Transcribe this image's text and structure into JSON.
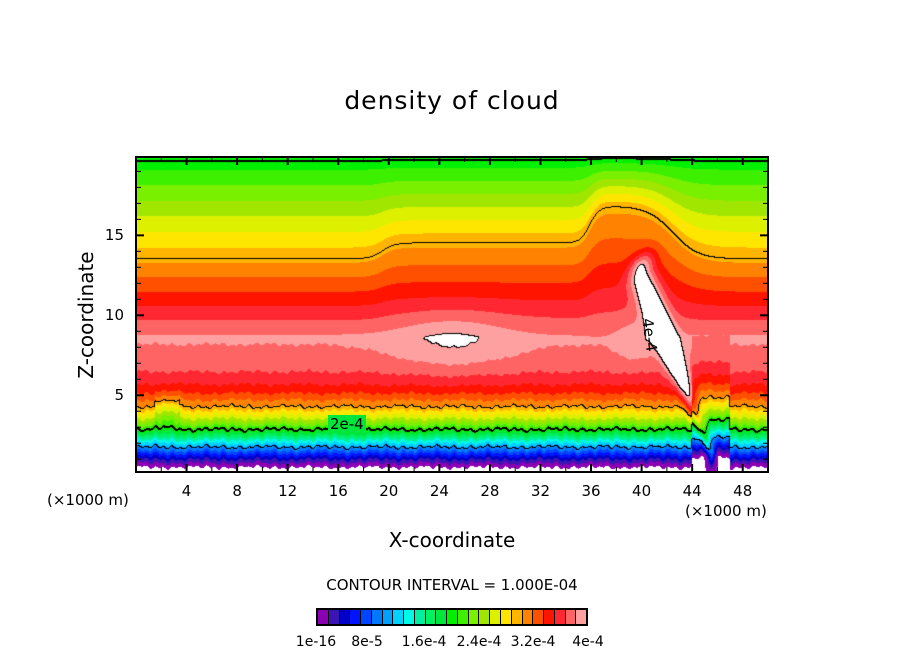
{
  "chart_data": {
    "type": "heatmap",
    "subtype": "filled-contour",
    "title": "density of cloud",
    "xlabel": "X-coordinate",
    "ylabel": "Z-coordinate",
    "x_unit": "(×1000 m)",
    "xlim": [
      0,
      50
    ],
    "ylim": [
      0.2,
      19.9
    ],
    "x_ticks": [
      4,
      8,
      12,
      16,
      20,
      24,
      28,
      32,
      36,
      40,
      44,
      48
    ],
    "x_tick_labels": [
      "4",
      "8",
      "12",
      "16",
      "20",
      "24",
      "28",
      "32",
      "36",
      "40",
      "44",
      "48"
    ],
    "y_ticks": [
      5,
      10,
      15
    ],
    "y_tick_labels": [
      "5",
      "10",
      "15"
    ],
    "contour_interval_text": "CONTOUR INTERVAL = 1.000E-04",
    "contour_levels": [
      0.0001,
      0.0002,
      0.0003,
      0.0004
    ],
    "contour_labels": [
      "2e-4",
      "4e-4"
    ],
    "colorbar": {
      "min": 1e-16,
      "max": 0.0004,
      "tick_labels": [
        "1e-16",
        "8e-5",
        "1.6e-4",
        "2.4e-4",
        "3.2e-4",
        "4e-4"
      ],
      "colors": [
        "#8c00b4",
        "#3c14b4",
        "#0000c8",
        "#0014ff",
        "#0046ff",
        "#0078ff",
        "#00a0ff",
        "#00d2ff",
        "#00fae6",
        "#00f0a0",
        "#00f064",
        "#00e63c",
        "#00f000",
        "#3cf000",
        "#78f000",
        "#a0e600",
        "#dcf000",
        "#ffe600",
        "#ffb400",
        "#ff8200",
        "#ff5000",
        "#ff1400",
        "#ff2832",
        "#ff6464",
        "#ffa0a0"
      ]
    },
    "features": {
      "max_region": "values above 4e-4 in a narrow tilted plume near x 39-45, z 3.5-12.5",
      "upper_3e-4_contour_z": {
        "x<19": 13.5,
        "20-35": 14.5,
        "37-42": 17,
        "x>46": 13.5
      },
      "lower_2e-4_contour_z": 3
    }
  }
}
